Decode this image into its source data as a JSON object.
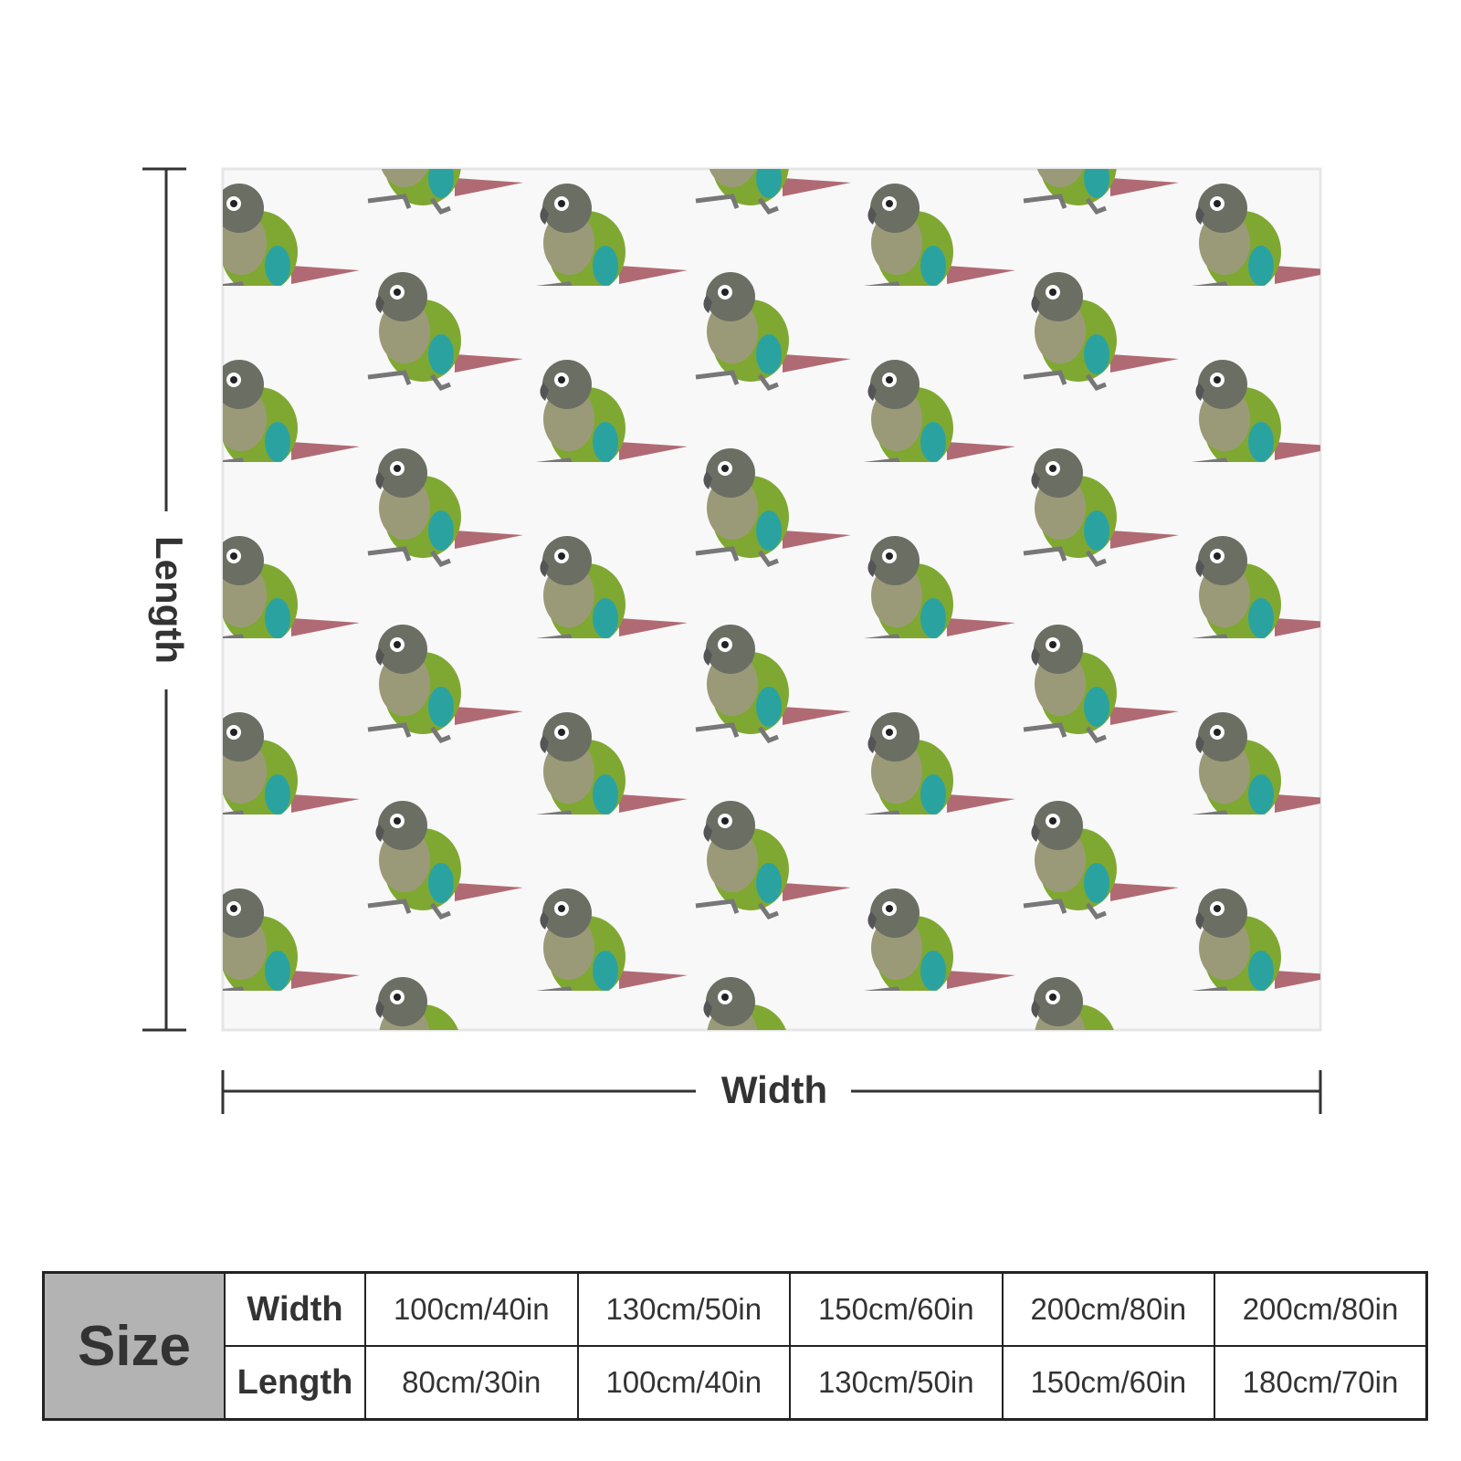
{
  "labels": {
    "length": "Length",
    "width": "Width"
  },
  "table": {
    "header": "Size",
    "rows": [
      [
        "Width",
        "100cm/40in",
        "130cm/50in",
        "150cm/60in",
        "200cm/80in",
        "200cm/80in"
      ],
      [
        "Length",
        "80cm/30in",
        "100cm/40in",
        "130cm/50in",
        "150cm/60in",
        "180cm/70in"
      ]
    ]
  }
}
